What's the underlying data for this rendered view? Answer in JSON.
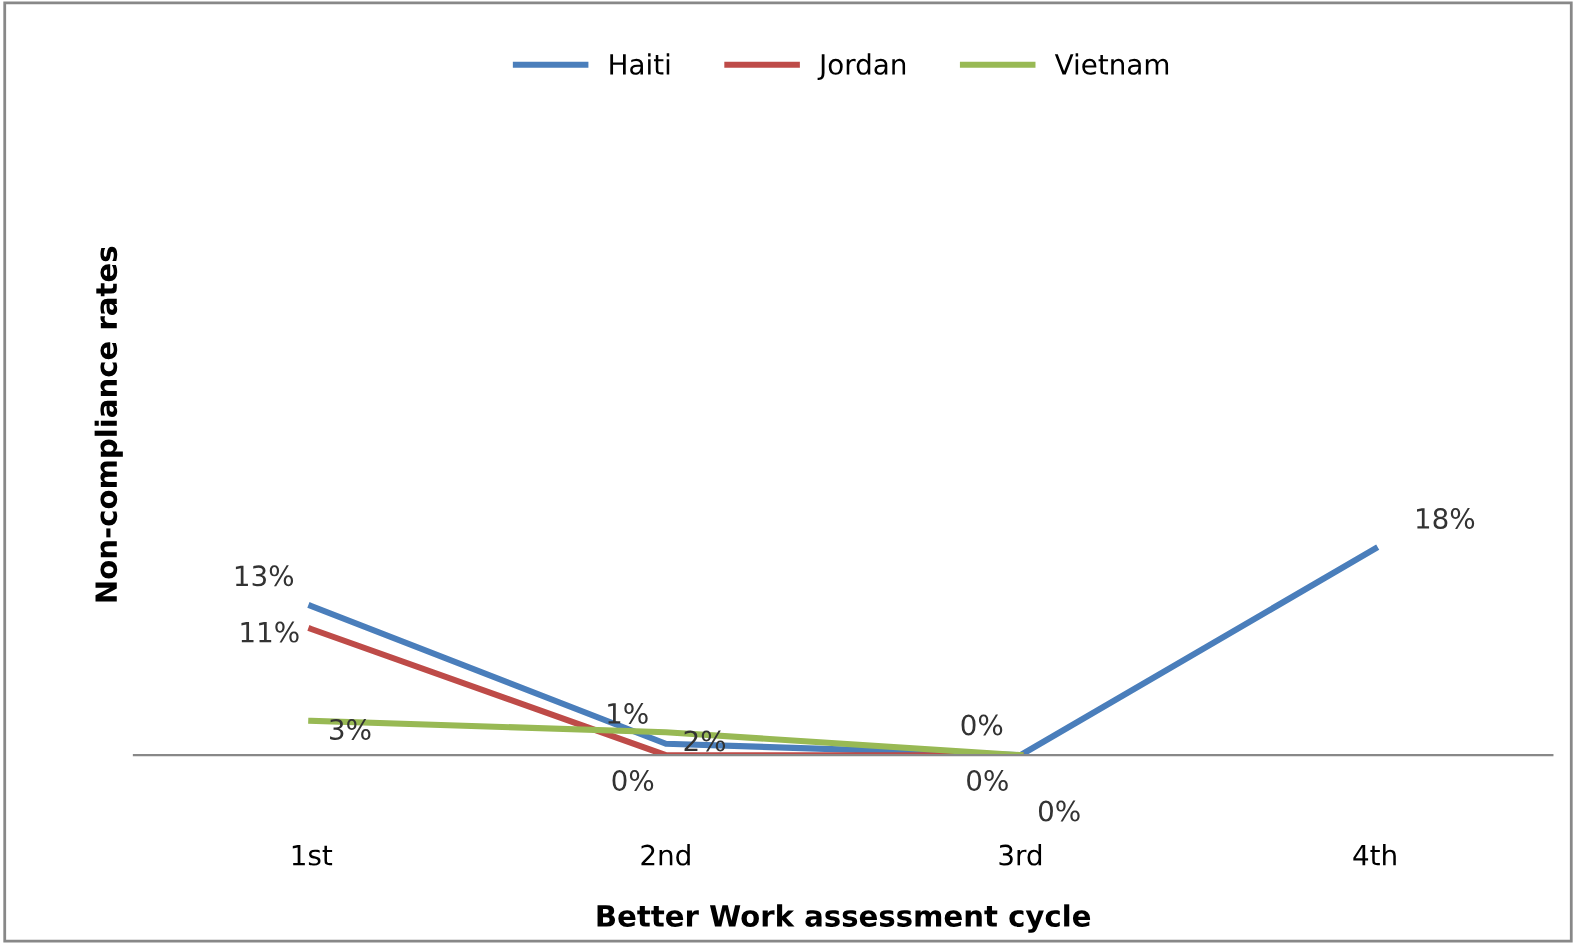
{
  "chart_data": {
    "type": "line",
    "xlabel": "Better Work assessment cycle",
    "ylabel": "Non-compliance rates",
    "categories": [
      "1st",
      "2nd",
      "3rd",
      "4th"
    ],
    "series": [
      {
        "name": "Haiti",
        "color": "#4a7ebb",
        "values": [
          13,
          1,
          0,
          18
        ],
        "value_labels": [
          "13%",
          "1%",
          "0%",
          "18%"
        ]
      },
      {
        "name": "Jordan",
        "color": "#be4b48",
        "values": [
          11,
          0,
          0,
          null
        ],
        "value_labels": [
          "11%",
          "0%",
          "0%",
          null
        ]
      },
      {
        "name": "Vietnam",
        "color": "#98b954",
        "values": [
          3,
          2,
          0,
          null
        ],
        "value_labels": [
          "3%",
          "2%",
          "0%",
          null
        ]
      }
    ],
    "legend": "top",
    "grid": false,
    "marker": "none",
    "line_style": "solid"
  }
}
